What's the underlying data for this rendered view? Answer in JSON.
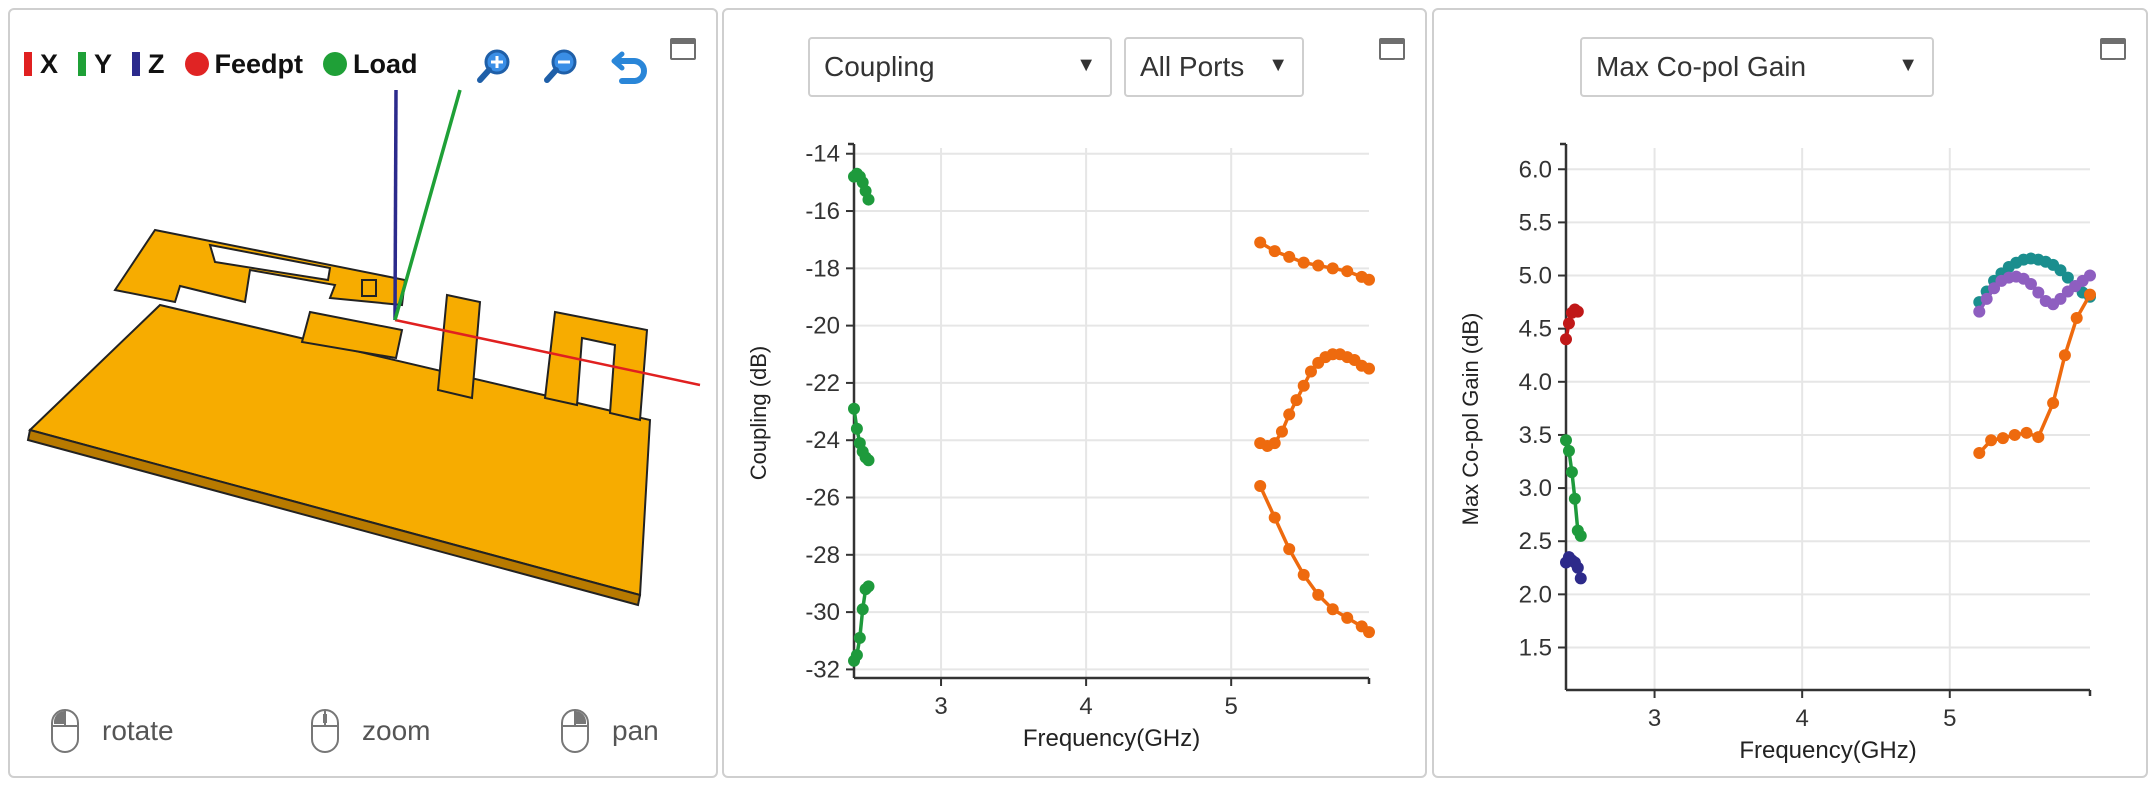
{
  "viewer": {
    "legend": [
      {
        "label": "X",
        "kind": "bar",
        "color": "#e02020"
      },
      {
        "label": "Y",
        "kind": "bar",
        "color": "#1fa037"
      },
      {
        "label": "Z",
        "kind": "bar",
        "color": "#2b2a8c"
      },
      {
        "label": "Feedpt",
        "kind": "dot",
        "color": "#e02424"
      },
      {
        "label": "Load",
        "kind": "dot",
        "color": "#1fa037"
      }
    ],
    "tools": [
      "zoom-in-icon",
      "zoom-out-icon",
      "undo-icon"
    ],
    "hints": [
      {
        "label": "rotate",
        "icon": "mouse-left-button-icon"
      },
      {
        "label": "zoom",
        "icon": "mouse-wheel-icon"
      },
      {
        "label": "pan",
        "icon": "mouse-right-button-icon"
      }
    ],
    "antenna_color": "#f7ac00"
  },
  "coupling_panel": {
    "select_measure": "Coupling",
    "select_ports": "All Ports"
  },
  "gain_panel": {
    "select_measure": "Max Co-pol Gain"
  },
  "chart_data": [
    {
      "type": "line",
      "xlabel": "Frequency(GHz)",
      "ylabel": "Coupling (dB)",
      "xlim": [
        2.4,
        5.95
      ],
      "ylim": [
        -32.3,
        -13.8
      ],
      "xticks": [
        3,
        4,
        5
      ],
      "yticks": [
        -14,
        -16,
        -18,
        -20,
        -22,
        -24,
        -26,
        -28,
        -30,
        -32
      ],
      "grid": true,
      "series": [
        {
          "color": "#1e9a3c",
          "x": [
            2.4,
            2.42,
            2.44,
            2.46,
            2.48,
            2.5
          ],
          "y": [
            -14.8,
            -14.7,
            -14.8,
            -15.0,
            -15.3,
            -15.6
          ]
        },
        {
          "color": "#1e9a3c",
          "x": [
            2.4,
            2.42,
            2.44,
            2.46,
            2.48,
            2.5
          ],
          "y": [
            -22.9,
            -23.6,
            -24.1,
            -24.4,
            -24.6,
            -24.7
          ]
        },
        {
          "color": "#1e9a3c",
          "x": [
            2.4,
            2.42,
            2.44,
            2.46,
            2.48,
            2.5
          ],
          "y": [
            -31.7,
            -31.5,
            -30.9,
            -29.9,
            -29.2,
            -29.1
          ]
        },
        {
          "color": "#ee6a0e",
          "x": [
            5.2,
            5.3,
            5.4,
            5.5,
            5.6,
            5.7,
            5.8,
            5.9,
            5.95
          ],
          "y": [
            -17.1,
            -17.4,
            -17.6,
            -17.8,
            -17.9,
            -18.0,
            -18.1,
            -18.3,
            -18.4
          ]
        },
        {
          "color": "#ee6a0e",
          "x": [
            5.2,
            5.25,
            5.3,
            5.35,
            5.4,
            5.45,
            5.5,
            5.55,
            5.6,
            5.65,
            5.7,
            5.75,
            5.8,
            5.85,
            5.9,
            5.95
          ],
          "y": [
            -24.1,
            -24.2,
            -24.1,
            -23.7,
            -23.1,
            -22.6,
            -22.1,
            -21.6,
            -21.3,
            -21.1,
            -21.0,
            -21.0,
            -21.1,
            -21.2,
            -21.4,
            -21.5
          ]
        },
        {
          "color": "#ee6a0e",
          "x": [
            5.2,
            5.3,
            5.4,
            5.5,
            5.6,
            5.7,
            5.8,
            5.9,
            5.95
          ],
          "y": [
            -25.6,
            -26.7,
            -27.8,
            -28.7,
            -29.4,
            -29.9,
            -30.2,
            -30.5,
            -30.7
          ]
        }
      ]
    },
    {
      "type": "line",
      "xlabel": "Frequency(GHz)",
      "ylabel": "Max Co-pol Gain (dB)",
      "xlim": [
        2.4,
        5.95
      ],
      "ylim": [
        1.1,
        6.2
      ],
      "xticks": [
        3,
        4,
        5
      ],
      "yticks": [
        6.0,
        5.5,
        5.0,
        4.5,
        4.0,
        3.5,
        3.0,
        2.5,
        2.0,
        1.5
      ],
      "grid": true,
      "series": [
        {
          "color": "#c01818",
          "x": [
            2.4,
            2.42,
            2.44,
            2.46,
            2.48
          ],
          "y": [
            4.4,
            4.55,
            4.65,
            4.68,
            4.66
          ]
        },
        {
          "color": "#1e9a3c",
          "x": [
            2.4,
            2.42,
            2.44,
            2.46,
            2.48,
            2.5
          ],
          "y": [
            3.45,
            3.35,
            3.15,
            2.9,
            2.6,
            2.55
          ]
        },
        {
          "color": "#2d2a8a",
          "x": [
            2.4,
            2.42,
            2.44,
            2.46,
            2.48,
            2.5
          ],
          "y": [
            2.3,
            2.35,
            2.32,
            2.3,
            2.25,
            2.15
          ]
        },
        {
          "color": "#1a8e8e",
          "x": [
            5.2,
            5.25,
            5.3,
            5.35,
            5.4,
            5.45,
            5.5,
            5.55,
            5.6,
            5.65,
            5.7,
            5.75,
            5.8,
            5.85,
            5.9,
            5.95
          ],
          "y": [
            4.75,
            4.85,
            4.95,
            5.02,
            5.08,
            5.12,
            5.15,
            5.16,
            5.15,
            5.13,
            5.1,
            5.05,
            4.98,
            4.9,
            4.84,
            4.8
          ]
        },
        {
          "color": "#8e5ec0",
          "x": [
            5.2,
            5.25,
            5.3,
            5.35,
            5.4,
            5.45,
            5.5,
            5.55,
            5.6,
            5.65,
            5.7,
            5.75,
            5.8,
            5.85,
            5.9,
            5.95
          ],
          "y": [
            4.66,
            4.78,
            4.88,
            4.95,
            4.98,
            4.99,
            4.97,
            4.92,
            4.84,
            4.76,
            4.73,
            4.78,
            4.85,
            4.9,
            4.95,
            5.0
          ]
        },
        {
          "color": "#ee6a0e",
          "x": [
            5.2,
            5.28,
            5.36,
            5.44,
            5.52,
            5.6,
            5.7,
            5.78,
            5.86,
            5.95
          ],
          "y": [
            3.33,
            3.45,
            3.47,
            3.5,
            3.52,
            3.48,
            3.8,
            4.25,
            4.6,
            4.82
          ]
        }
      ]
    }
  ]
}
